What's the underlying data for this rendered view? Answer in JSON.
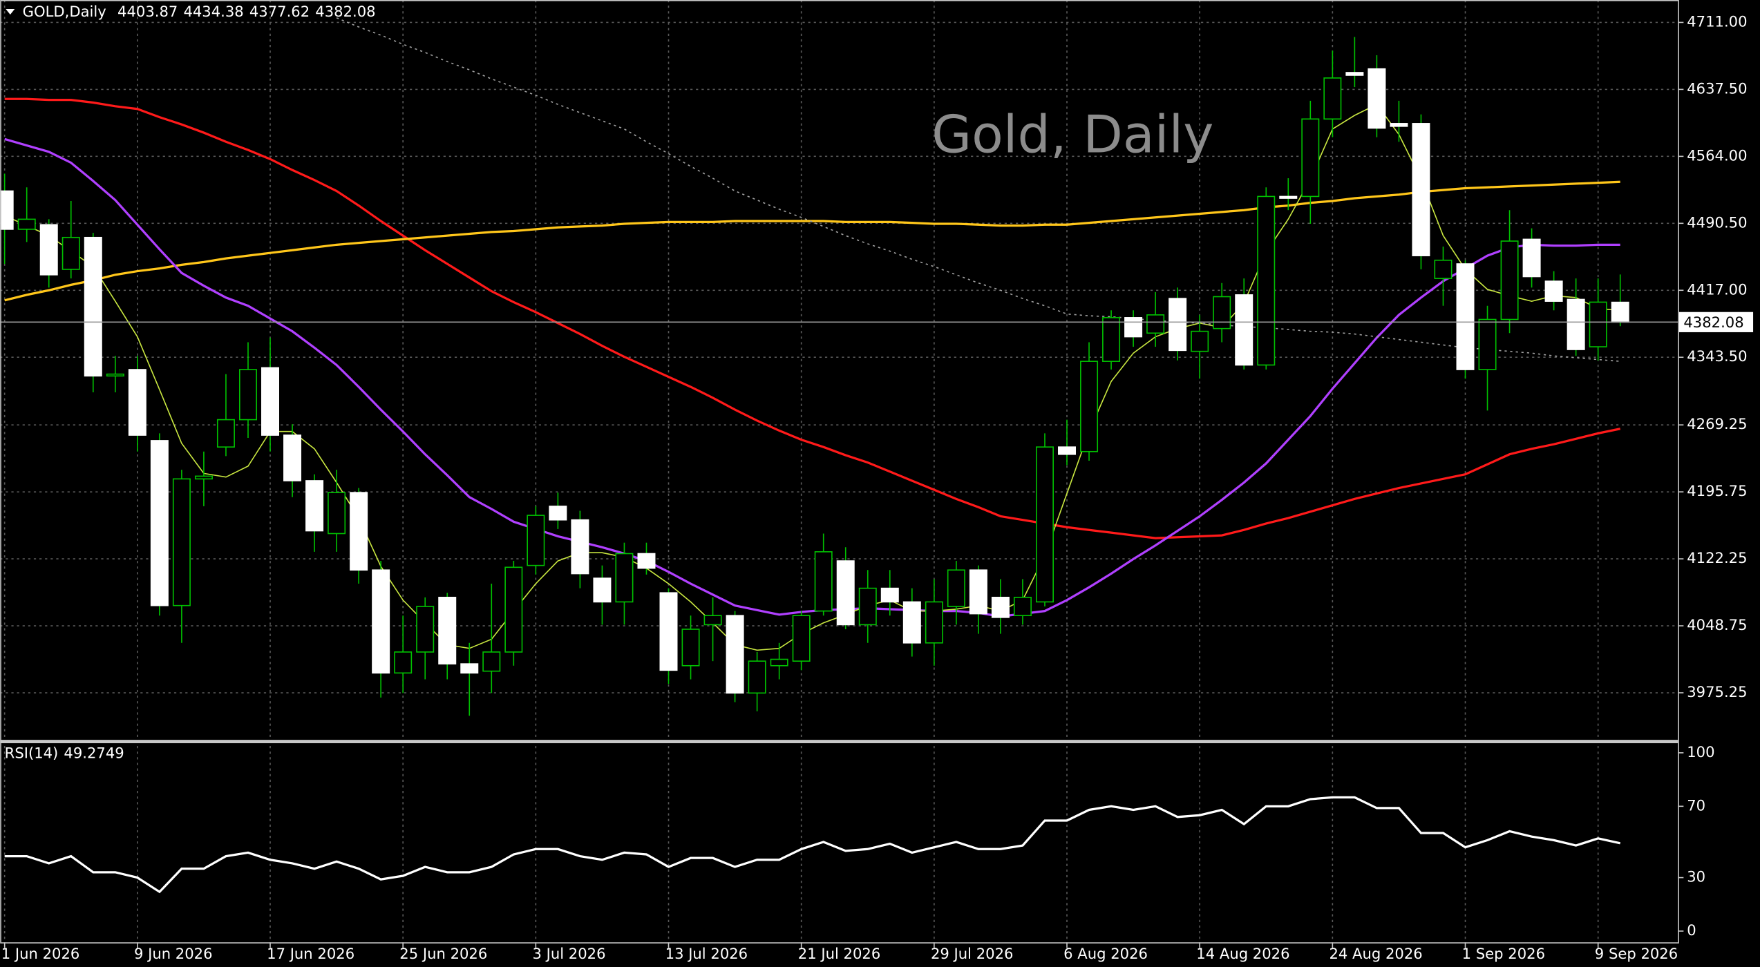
{
  "chart_data": [
    {
      "type": "candlestick",
      "title": "GOLD,Daily",
      "watermark": "Gold, Daily",
      "categories": [
        "1 Jun 2026",
        null,
        null,
        null,
        null,
        null,
        "9 Jun 2026",
        null,
        null,
        null,
        null,
        null,
        "17 Jun 2026",
        null,
        null,
        null,
        null,
        null,
        "25 Jun 2026",
        null,
        null,
        null,
        null,
        null,
        "3 Jul 2026",
        null,
        null,
        null,
        null,
        null,
        "13 Jul 2026",
        null,
        null,
        null,
        null,
        null,
        "21 Jul 2026",
        null,
        null,
        null,
        null,
        null,
        "29 Jul 2026",
        null,
        null,
        null,
        null,
        null,
        "6 Aug 2026",
        null,
        null,
        null,
        null,
        null,
        "14 Aug 2026",
        null,
        null,
        null,
        null,
        null,
        "24 Aug 2026",
        null,
        null,
        null,
        null,
        null,
        "1 Sep 2026",
        null,
        null,
        null,
        null,
        null,
        "9 Sep 2026",
        null
      ],
      "open": [
        4526,
        4484,
        4489,
        4440,
        4475,
        4323,
        4330,
        4252,
        4071,
        4210,
        4245,
        4275,
        4332,
        4258,
        4208,
        4150,
        4195,
        4110,
        3997,
        4020,
        4080,
        4007,
        3999,
        4020,
        4115,
        4180,
        4165,
        4101,
        4075,
        4128,
        4085,
        4005,
        4050,
        4060,
        3975,
        4005,
        4010,
        4065,
        4120,
        4050,
        4090,
        4075,
        4030,
        4070,
        4110,
        4080,
        4060,
        4075,
        4245,
        4240,
        4339,
        4387,
        4370,
        4408,
        4350,
        4375,
        4412,
        4335,
        4520,
        4520,
        4605,
        4656,
        4660,
        4600,
        4600,
        4430,
        4446,
        4330,
        4385,
        4473,
        4427,
        4407,
        4355,
        4403.87
      ],
      "high": [
        4545,
        4530,
        4495,
        4515,
        4480,
        4345,
        4345,
        4260,
        4220,
        4240,
        4325,
        4360,
        4365,
        4270,
        4215,
        4220,
        4200,
        4120,
        4060,
        4080,
        4085,
        4030,
        4095,
        4120,
        4180,
        4195,
        4175,
        4115,
        4140,
        4140,
        4090,
        4060,
        4080,
        4065,
        4020,
        4030,
        4065,
        4150,
        4135,
        4110,
        4110,
        4090,
        4100,
        4120,
        4115,
        4100,
        4100,
        4260,
        4275,
        4360,
        4395,
        4395,
        4415,
        4420,
        4390,
        4425,
        4430,
        4530,
        4540,
        4625,
        4680,
        4695,
        4675,
        4625,
        4610,
        4465,
        4450,
        4400,
        4505,
        4485,
        4438,
        4430,
        4430,
        4434.38
      ],
      "low": [
        4446,
        4470,
        4420,
        4430,
        4305,
        4305,
        4240,
        4060,
        4030,
        4180,
        4235,
        4255,
        4240,
        4190,
        4130,
        4130,
        4095,
        3970,
        3975,
        3990,
        3990,
        3950,
        3975,
        4005,
        4105,
        4155,
        4090,
        4050,
        4050,
        4105,
        3985,
        3990,
        4010,
        3965,
        3955,
        3990,
        4000,
        4060,
        4045,
        4030,
        4060,
        4015,
        4005,
        4050,
        4040,
        4040,
        4050,
        4070,
        4225,
        4230,
        4330,
        4355,
        4355,
        4340,
        4320,
        4360,
        4330,
        4330,
        4505,
        4490,
        4585,
        4640,
        4585,
        4580,
        4440,
        4400,
        4320,
        4285,
        4370,
        4420,
        4395,
        4345,
        4340,
        4377.62
      ],
      "close": [
        4484,
        4495,
        4434,
        4475,
        4323,
        4325,
        4258,
        4071,
        4210,
        4213,
        4275,
        4330,
        4258,
        4208,
        4153,
        4195,
        4110,
        3997,
        4020,
        4070,
        4007,
        3997,
        4020,
        4113,
        4170,
        4165,
        4106,
        4075,
        4128,
        4112,
        4000,
        4045,
        4060,
        3975,
        4010,
        4012,
        4060,
        4130,
        4050,
        4090,
        4075,
        4030,
        4075,
        4110,
        4062,
        4058,
        4080,
        4245,
        4237,
        4339,
        4387,
        4366,
        4390,
        4351,
        4372,
        4410,
        4335,
        4520,
        4518,
        4605,
        4650,
        4653,
        4595,
        4597,
        4455,
        4450,
        4330,
        4385,
        4471,
        4432,
        4405,
        4352,
        4404,
        4382.08
      ],
      "up_color": "#000000",
      "down_color": "#ffffff",
      "wick_color": "#00c000",
      "series": [
        {
          "color": "#ff1a1a",
          "width": 2,
          "values": [
            4627,
            4627,
            4626,
            4626,
            4623,
            4619,
            4616,
            4607,
            4599,
            4590,
            4580,
            4571,
            4561,
            4549,
            4538,
            4526,
            4510,
            4493,
            4477,
            4461,
            4446,
            4431,
            4416,
            4404,
            4393,
            4381,
            4369,
            4356,
            4344,
            4333,
            4322,
            4311,
            4299,
            4286,
            4274,
            4263,
            4253,
            4245,
            4236,
            4228,
            4218,
            4208,
            4198,
            4188,
            4179,
            4169,
            4165,
            4161,
            4157,
            4154,
            4151,
            4148,
            4145,
            4146,
            4147,
            4148,
            4154,
            4161,
            4167,
            4174,
            4181,
            4188,
            4194,
            4200,
            4205,
            4210,
            4215,
            4226,
            4237,
            4243,
            4248,
            4254,
            4260,
            4265
          ]
        },
        {
          "color": "#ffc61a",
          "width": 2,
          "values": [
            4406,
            4412,
            4417,
            4423,
            4428,
            4434,
            4438,
            4441,
            4445,
            4448,
            4452,
            4455,
            4458,
            4461,
            4464,
            4467,
            4469,
            4471,
            4473,
            4475,
            4477,
            4479,
            4481,
            4482,
            4484,
            4486,
            4487,
            4488,
            4490,
            4491,
            4492,
            4492,
            4492,
            4493,
            4493,
            4493,
            4493,
            4493,
            4492,
            4492,
            4492,
            4491,
            4490,
            4490,
            4489,
            4488,
            4488,
            4489,
            4489,
            4491,
            4493,
            4495,
            4497,
            4499,
            4501,
            4503,
            4505,
            4508,
            4510,
            4513,
            4515,
            4518,
            4520,
            4522,
            4525,
            4527,
            4529,
            4530,
            4531,
            4532,
            4533,
            4534,
            4535,
            4536
          ]
        },
        {
          "color": "#b040ff",
          "width": 2,
          "values": [
            4583,
            4576,
            4569,
            4557,
            4537,
            4516,
            4489,
            4462,
            4436,
            4422,
            4409,
            4400,
            4386,
            4372,
            4354,
            4335,
            4311,
            4286,
            4262,
            4237,
            4214,
            4190,
            4177,
            4163,
            4155,
            4147,
            4141,
            4135,
            4128,
            4120,
            4108,
            4095,
            4083,
            4071,
            4066,
            4061,
            4064,
            4066,
            4067,
            4068,
            4067,
            4066,
            4065,
            4065,
            4063,
            4059,
            4062,
            4065,
            4077,
            4091,
            4106,
            4122,
            4137,
            4153,
            4169,
            4187,
            4206,
            4227,
            4253,
            4279,
            4309,
            4337,
            4365,
            4390,
            4409,
            4427,
            4441,
            4455,
            4464,
            4467,
            4466,
            4466,
            4467,
            4467
          ]
        },
        {
          "color": "#c8e640",
          "width": 1,
          "values": [
            4499,
            4488,
            4477,
            4460,
            4443,
            4405,
            4366,
            4308,
            4249,
            4216,
            4212,
            4224,
            4262,
            4262,
            4243,
            4206,
            4167,
            4114,
            4077,
            4052,
            4028,
            4024,
            4034,
            4065,
            4095,
            4120,
            4129,
            4129,
            4124,
            4112,
            4095,
            4075,
            4052,
            4028,
            4022,
            4024,
            4040,
            4052,
            4061,
            4071,
            4077,
            4065,
            4065,
            4067,
            4071,
            4065,
            4077,
            4126,
            4194,
            4262,
            4317,
            4348,
            4366,
            4375,
            4381,
            4376,
            4403,
            4459,
            4495,
            4539,
            4594,
            4609,
            4621,
            4588,
            4539,
            4477,
            4440,
            4418,
            4411,
            4405,
            4411,
            4409,
            4397,
            4395
          ]
        },
        {
          "color": "#a0a0a0",
          "width": 1,
          "dashed": true,
          "values": [
            null,
            null,
            null,
            null,
            null,
            null,
            null,
            null,
            null,
            null,
            null,
            null,
            null,
            null,
            null,
            4716,
            4706,
            4697,
            4687,
            4678,
            4668,
            4659,
            4649,
            4640,
            4631,
            4621,
            4612,
            4603,
            4594,
            4580,
            4567,
            4553,
            4540,
            4526,
            4516,
            4506,
            4497,
            4487,
            4477,
            4468,
            4460,
            4451,
            4443,
            4434,
            4425,
            4417,
            4408,
            4400,
            4391,
            4389,
            4388,
            4386,
            4384,
            4382,
            4381,
            4379,
            4377,
            4376,
            4374,
            4372,
            4371,
            4369,
            4366,
            4363,
            4360,
            4357,
            4354,
            4352,
            4350,
            4348,
            4345,
            4343,
            4341,
            4339
          ]
        }
      ],
      "ylim": [
        3923,
        4735.6
      ],
      "yticks": [
        {
          "value": 4711,
          "label": "4711.00"
        },
        {
          "value": 4637.5,
          "label": "4637.50"
        },
        {
          "value": 4564,
          "label": "4564.00"
        },
        {
          "value": 4490.5,
          "label": "4490.50"
        },
        {
          "value": 4417,
          "label": "4417.00"
        },
        {
          "value": 4343.5,
          "label": "4343.50"
        },
        {
          "value": 4269.25,
          "label": "4269.25"
        },
        {
          "value": 4195.75,
          "label": "4195.75"
        },
        {
          "value": 4122.25,
          "label": "4122.25"
        },
        {
          "value": 4048.75,
          "label": "4048.75"
        },
        {
          "value": 3975.25,
          "label": "3975.25"
        }
      ],
      "grid": true
    },
    {
      "type": "line",
      "title": "RSI(14)",
      "color": "#ffffff",
      "values": [
        42,
        42,
        38,
        42,
        33,
        33,
        30,
        22,
        35,
        35,
        42,
        44,
        40,
        38,
        35,
        39,
        35,
        29,
        31,
        36,
        33,
        33,
        36,
        43,
        46,
        46,
        42,
        40,
        44,
        43,
        36,
        41,
        41,
        36,
        40,
        40,
        46,
        50,
        45,
        46,
        49,
        44,
        47,
        50,
        46,
        46,
        48,
        62,
        62,
        68,
        70,
        68,
        70,
        64,
        65,
        68,
        60,
        70,
        70,
        74,
        75,
        75,
        69,
        69,
        55,
        55,
        47,
        51,
        56,
        53,
        51,
        48,
        52,
        49.2749
      ],
      "ylim": [
        -6.3,
        105.7
      ],
      "yticks": [
        100,
        70,
        30,
        0
      ],
      "grid": false
    }
  ]
}
